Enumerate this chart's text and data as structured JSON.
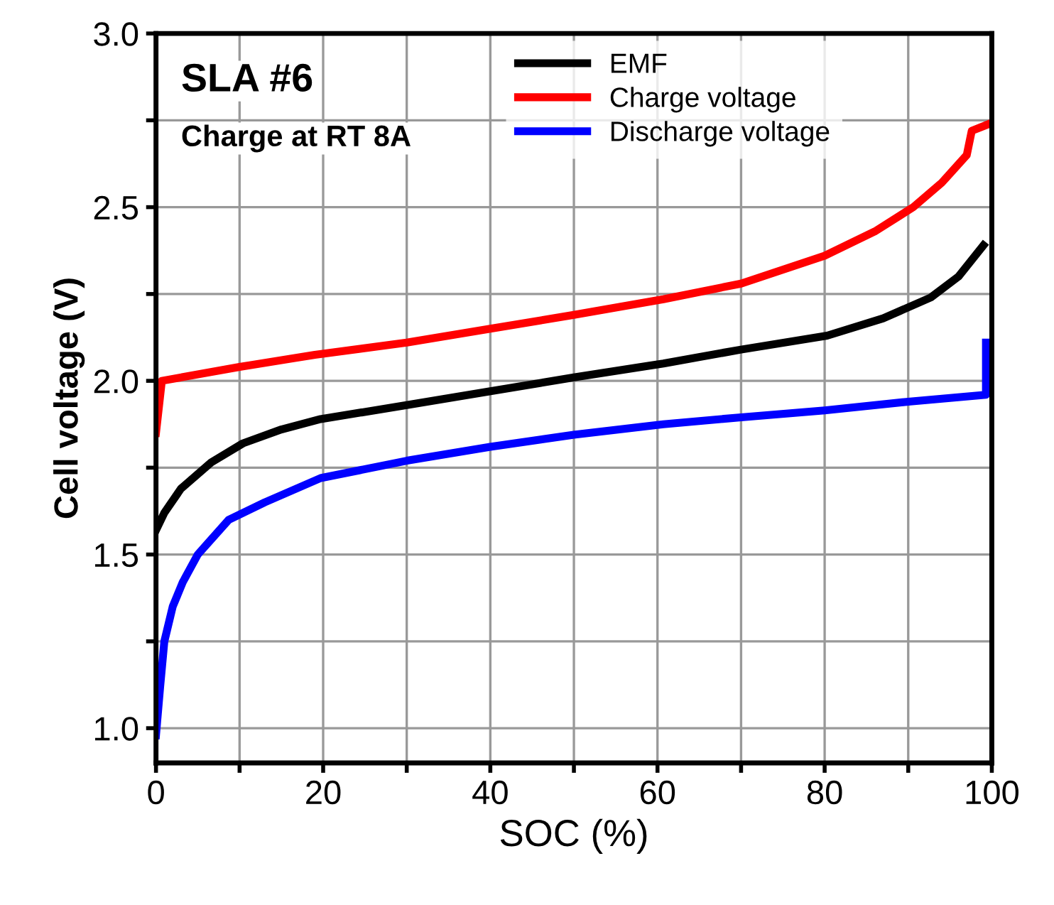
{
  "chart_data": {
    "type": "line",
    "xlabel": "SOC (%)",
    "ylabel": "Cell voltage (V)",
    "annotations": [
      "SLA #6",
      "Charge at RT 8A"
    ],
    "xlim": [
      0,
      100
    ],
    "ylim": [
      0.9,
      3.0
    ],
    "xticks": [
      0,
      {
        "value": 10,
        "label": null
      },
      20,
      {
        "value": 30,
        "label": null
      },
      40,
      {
        "value": 50,
        "label": null
      },
      60,
      {
        "value": 70,
        "label": null
      },
      80,
      {
        "value": 90,
        "label": null
      },
      100
    ],
    "yticks": [
      {
        "value": 1.0,
        "label": "1.0"
      },
      {
        "value": 1.25,
        "label": null
      },
      1.5,
      {
        "value": 1.75,
        "label": null
      },
      {
        "value": 2.0,
        "label": "2.0"
      },
      {
        "value": 2.25,
        "label": null
      },
      2.5,
      {
        "value": 2.75,
        "label": null
      },
      {
        "value": 3.0,
        "label": "3.0"
      }
    ],
    "grid": true,
    "legend": "top",
    "line_style": "solid",
    "marker": "none",
    "series": [
      {
        "name": "EMF",
        "color": "#000000",
        "x": [
          0,
          1,
          3,
          6.6,
          10.4,
          15,
          19.7,
          30,
          40,
          50,
          60.7,
          70,
          80.3,
          87,
          92.7,
          96,
          99
        ],
        "values": [
          1.57,
          1.62,
          1.69,
          1.765,
          1.82,
          1.86,
          1.89,
          1.93,
          1.97,
          2.01,
          2.05,
          2.09,
          2.13,
          2.18,
          2.24,
          2.3,
          2.39
        ]
      },
      {
        "name": "Charge voltage",
        "color": "#ff0000",
        "x": [
          0,
          0.7,
          10,
          19,
          30,
          40,
          50,
          60.7,
          70,
          80,
          86,
          90.6,
          94,
          97,
          97.6,
          99.7
        ],
        "values": [
          1.85,
          2.0,
          2.04,
          2.075,
          2.11,
          2.15,
          2.19,
          2.235,
          2.28,
          2.36,
          2.43,
          2.5,
          2.57,
          2.65,
          2.72,
          2.74
        ]
      },
      {
        "name": "Discharge voltage",
        "color": "#0000ff",
        "x": [
          0,
          0.5,
          1,
          2,
          3.2,
          5,
          8.7,
          13,
          19.7,
          30,
          40,
          50,
          60.7,
          70,
          80,
          90,
          99.3,
          99.3
        ],
        "values": [
          0.98,
          1.12,
          1.25,
          1.35,
          1.42,
          1.5,
          1.6,
          1.65,
          1.72,
          1.77,
          1.81,
          1.845,
          1.875,
          1.895,
          1.915,
          1.94,
          1.96,
          2.11
        ]
      }
    ]
  }
}
